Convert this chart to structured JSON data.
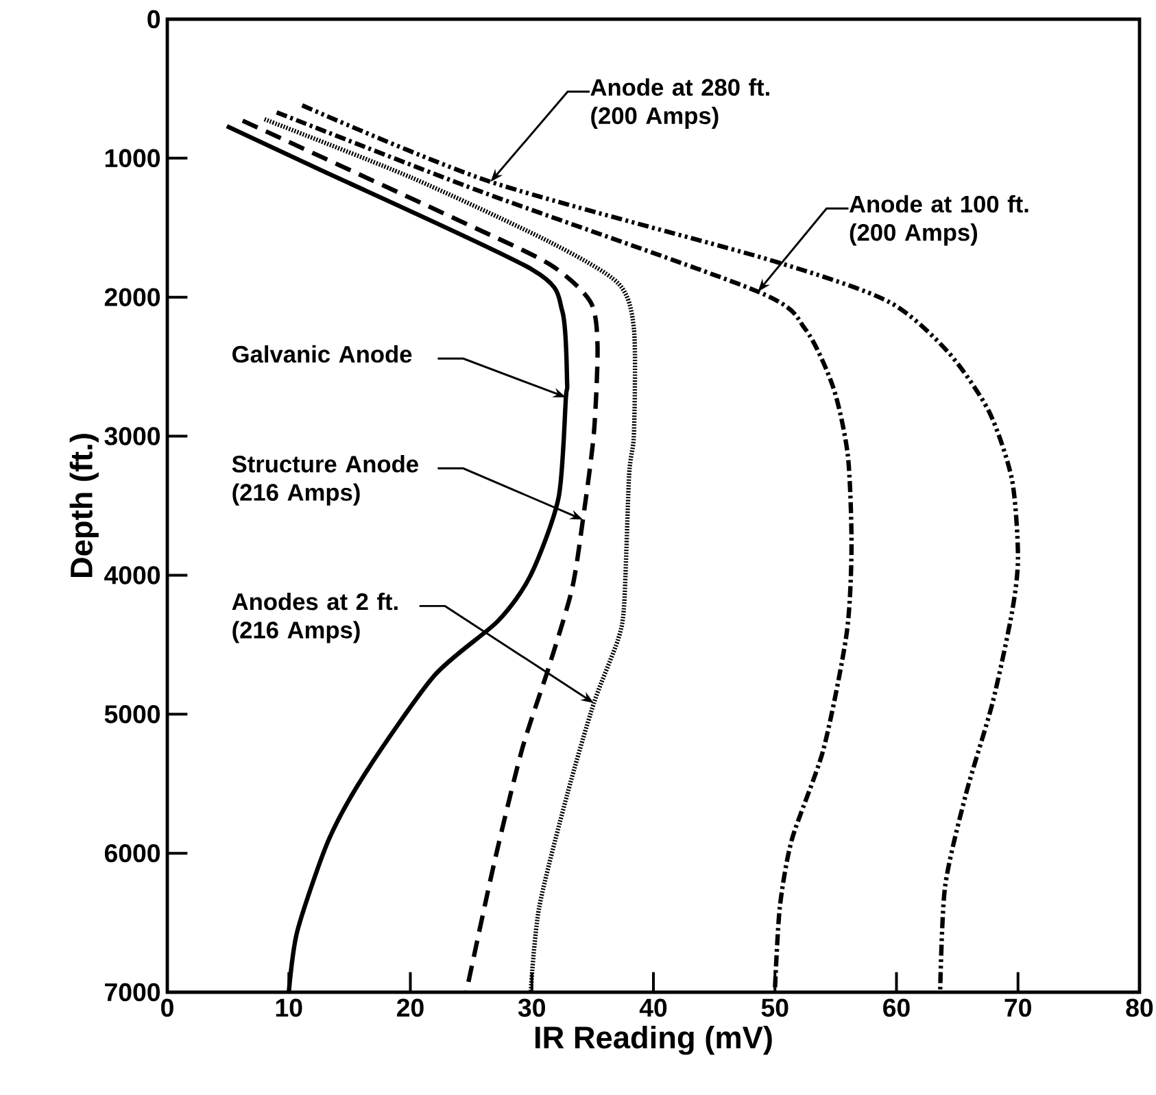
{
  "chart_data": {
    "type": "line",
    "xlabel": "IR Reading (mV)",
    "ylabel": "Depth (ft.)",
    "xlim": [
      0,
      80
    ],
    "xticks": [
      0,
      10,
      20,
      30,
      40,
      50,
      60,
      70,
      80
    ],
    "ylim": [
      7000,
      0
    ],
    "yticks": [
      0,
      1000,
      2000,
      3000,
      4000,
      5000,
      6000,
      7000
    ],
    "grid": false,
    "marker": "none",
    "series": [
      {
        "color": "#000000",
        "line_style": "solid",
        "x": [
          4.9,
          12.5,
          30,
          32.5,
          32.9,
          32.8,
          32.2,
          29.9,
          27.2,
          22,
          16.4,
          13.3,
          10.7,
          10
        ],
        "values": [
          770,
          1080,
          1800,
          2100,
          2620,
          2720,
          3440,
          4000,
          4330,
          4720,
          5410,
          5900,
          6560,
          7000
        ]
      },
      {
        "color": "#000000",
        "line_style": "dashed",
        "x": [
          6.2,
          23.8,
          31.4,
          34.8,
          35.4,
          35.1,
          34.2,
          33.3,
          31.4,
          29.2,
          26.9,
          24.6
        ],
        "values": [
          730,
          1440,
          1760,
          2030,
          2350,
          2980,
          3600,
          4100,
          4660,
          5250,
          6070,
          7000
        ]
      },
      {
        "color": "#000000",
        "line_style": "dotted",
        "x": [
          8,
          20.1,
          31.4,
          37.1,
          38.4,
          38.4,
          38,
          37.6,
          37.1,
          35.1,
          32.9,
          30.6,
          29.9
        ],
        "values": [
          720,
          1140,
          1600,
          1900,
          2230,
          2980,
          3280,
          4200,
          4460,
          4920,
          5580,
          6390,
          7000
        ]
      },
      {
        "color": "#000000",
        "line_style": "dashdot",
        "x": [
          9,
          25.8,
          48.6,
          52.5,
          54.8,
          56,
          56.3,
          55.9,
          54,
          51.4,
          50.4,
          50
        ],
        "values": [
          670,
          1240,
          1960,
          2230,
          2650,
          3140,
          3800,
          4420,
          5250,
          5900,
          6390,
          6980
        ]
      },
      {
        "color": "#000000",
        "line_style": "dashdotdot",
        "x": [
          11.1,
          26.6,
          49.5,
          59.3,
          64.2,
          67.6,
          69.5,
          70,
          69.5,
          67.9,
          65.7,
          64,
          63.6
        ],
        "values": [
          620,
          1170,
          1730,
          2030,
          2390,
          2820,
          3310,
          3870,
          4270,
          4920,
          5580,
          6240,
          6980
        ]
      }
    ],
    "annotations": [
      {
        "text": "Galvanic Anode",
        "x": 32.8,
        "y": 2720
      },
      {
        "text": "Structure Anode (216 Amps)",
        "x": 34.2,
        "y": 3600
      },
      {
        "text": "Anodes at 2 ft. (216 Amps)",
        "x": 35.1,
        "y": 4920
      },
      {
        "text": "Anode at 280 ft. (200 Amps)",
        "x": 26.6,
        "y": 1170
      },
      {
        "text": "Anode at 100 ft. (200 Amps)",
        "x": 48.6,
        "y": 1960
      }
    ]
  }
}
